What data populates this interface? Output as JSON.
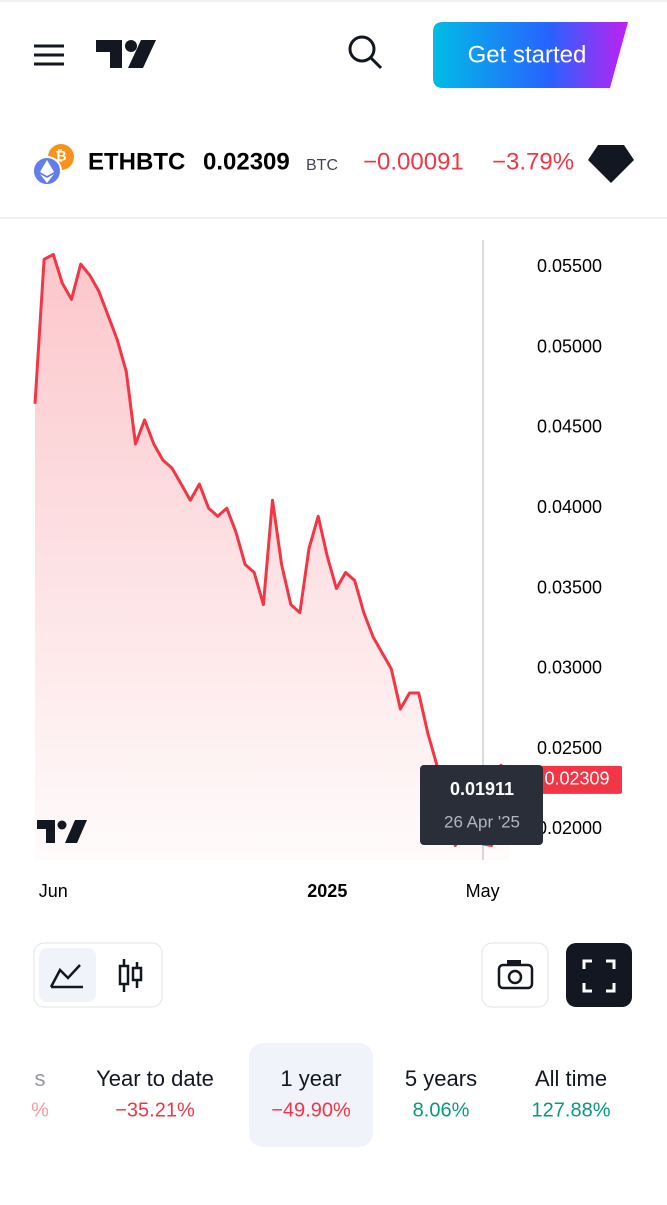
{
  "header": {
    "button": "Get started"
  },
  "ticker": {
    "symbol": "ETHBTC",
    "price": "0.02309",
    "currency": "BTC",
    "change": "−0.00091",
    "change_pct": "−3.79%"
  },
  "chart_data": {
    "type": "area",
    "color": "#f23645",
    "categories": [
      null,
      null,
      "Jun",
      null,
      null,
      null,
      null,
      null,
      null,
      null,
      null,
      null,
      null,
      null,
      null,
      null,
      null,
      null,
      null,
      null,
      null,
      null,
      null,
      null,
      null,
      null,
      null,
      null,
      null,
      null,
      null,
      null,
      "2025",
      null,
      null,
      null,
      null,
      null,
      null,
      null,
      null,
      null,
      null,
      null,
      null,
      null,
      null,
      null,
      null,
      "May",
      null,
      null,
      null
    ],
    "values": [
      0.0465,
      0.0555,
      0.0558,
      0.054,
      0.053,
      0.0552,
      0.0545,
      0.0535,
      0.052,
      0.0505,
      0.0485,
      0.044,
      0.0455,
      0.044,
      0.043,
      0.0425,
      0.0415,
      0.0405,
      0.0415,
      0.04,
      0.0395,
      0.04,
      0.0385,
      0.0365,
      0.036,
      0.034,
      0.0405,
      0.0365,
      0.034,
      0.0335,
      0.0375,
      0.0395,
      0.037,
      0.035,
      0.036,
      0.0355,
      0.0335,
      0.032,
      0.031,
      0.03,
      0.0275,
      0.0285,
      0.0285,
      0.026,
      0.024,
      0.022,
      0.019,
      0.02,
      0.0195,
      0.0191,
      0.019,
      0.024,
      0.02309
    ],
    "ylim": [
      0.0181,
      0.0567
    ],
    "yticks": [
      {
        "value": 0.02,
        "label": "0.02000"
      },
      {
        "value": 0.025,
        "label": "0.02500"
      },
      {
        "value": 0.03,
        "label": "0.03000"
      },
      {
        "value": 0.035,
        "label": "0.03500"
      },
      {
        "value": 0.04,
        "label": "0.04000"
      },
      {
        "value": 0.045,
        "label": "0.04500"
      },
      {
        "value": 0.05,
        "label": "0.05000"
      },
      {
        "value": 0.055,
        "label": "0.05500"
      }
    ],
    "tooltip": {
      "value": "0.01911",
      "date": "26 Apr '25"
    }
  },
  "periods": [
    {
      "label": "s",
      "change": "%",
      "color": "#f23645"
    },
    {
      "label": "Year to date",
      "change": "−35.21%",
      "color": "#f23645"
    },
    {
      "label": "1 year",
      "change": "−49.90%",
      "color": "#f23645",
      "selected": true
    },
    {
      "label": "5 years",
      "change": "8.06%",
      "color": "#089981"
    },
    {
      "label": "All time",
      "change": "127.88%",
      "color": "#089981"
    }
  ]
}
